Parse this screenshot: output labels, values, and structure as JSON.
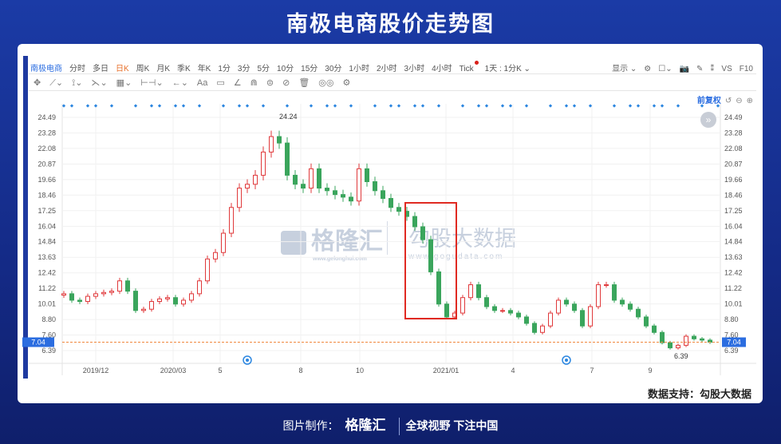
{
  "title": "南极电商股价走势图",
  "toolbar": {
    "stock": "南极电商",
    "periods": [
      "分时",
      "多日",
      "日K",
      "周K",
      "月K",
      "季K",
      "年K",
      "1分",
      "3分",
      "5分",
      "10分",
      "15分",
      "30分",
      "1小时",
      "2小时",
      "3小时",
      "4小时",
      "Tick"
    ],
    "active_period": "日K",
    "range": "1天 : 1分K ⌄",
    "drawing_tools": [
      "✥",
      "⟋⌄",
      "⟟⌄",
      "⋋⌄",
      "▦⌄",
      "⊢⊣⌄",
      "←⌄",
      "Aa",
      "▭",
      "∠",
      "⋒",
      "⊜",
      "⊘",
      "🗑",
      "◎◎",
      "⚙"
    ],
    "right": [
      "显示 ⌄",
      "⚙",
      "☐⌄",
      "📷",
      "✎",
      "⁑",
      "VS",
      "F10"
    ],
    "adjust": "前复权",
    "adjust_icons": [
      "↺",
      "⊖",
      "⊕"
    ]
  },
  "watermark": {
    "left": "格隆汇",
    "left_url": "www.gelonghui.com",
    "right": "勾股大数据",
    "right_url": "www.gogudata.com"
  },
  "chart_data": {
    "type": "candlestick",
    "closes": [
      10.8,
      10.3,
      10.2,
      10.6,
      10.8,
      10.9,
      11.0,
      11.8,
      11.0,
      9.5,
      9.6,
      10.2,
      10.4,
      10.5,
      10.0,
      10.3,
      10.8,
      11.8,
      13.5,
      14.0,
      15.5,
      17.5,
      19.0,
      19.3,
      20.0,
      21.8,
      23.0,
      22.5,
      20.0,
      19.3,
      19.0,
      20.5,
      19.0,
      18.8,
      18.5,
      18.3,
      18.0,
      20.5,
      19.5,
      18.8,
      18.2,
      17.5,
      17.2,
      16.8,
      16.0,
      15.0,
      12.5,
      10.0,
      9.0,
      9.3,
      10.5,
      11.5,
      10.5,
      9.8,
      9.5,
      9.5,
      9.3,
      9.0,
      8.5,
      7.8,
      8.3,
      9.3,
      10.3,
      10.0,
      9.5,
      8.3,
      9.8,
      11.5,
      11.5,
      10.3,
      10.0,
      9.6,
      9.0,
      8.3,
      7.8,
      7.0,
      6.6,
      6.8,
      7.5,
      7.3,
      7.2,
      7.04
    ],
    "y_ticks": [
      24.49,
      23.28,
      22.08,
      20.87,
      19.66,
      18.46,
      17.25,
      16.04,
      14.84,
      13.63,
      12.42,
      11.22,
      10.01,
      8.8,
      7.6,
      6.39
    ],
    "ylim": [
      6.39,
      24.49
    ],
    "x_ticks": [
      {
        "label": "2019/12",
        "at": 4
      },
      {
        "label": "2020/03",
        "at": 13.7
      },
      {
        "label": "5",
        "at": 19.6
      },
      {
        "label": "8",
        "at": 29.7
      },
      {
        "label": "10",
        "at": 37.1
      },
      {
        "label": "2021/01",
        "at": 47.9
      },
      {
        "label": "4",
        "at": 56.3
      },
      {
        "label": "7",
        "at": 66.2
      },
      {
        "label": "9",
        "at": 73.5
      }
    ],
    "high_label": {
      "text": "24.24",
      "at": 26.5,
      "value": 24.24
    },
    "low_label": {
      "text": "6.39",
      "at": 76.5,
      "value": 6.39
    },
    "current_price": "7.04",
    "highlight": {
      "from": 43,
      "to": 49,
      "color": "#e02a22"
    },
    "colors": {
      "up": "#e0393b",
      "down": "#3aa55c",
      "current": "#f0883e",
      "marker": "#2b86e0"
    },
    "event_markers_at": [
      23,
      63
    ],
    "grid": true
  },
  "credit": "数据支持：勾股大数据",
  "footer": {
    "label": "图片制作：",
    "logo": "格隆汇",
    "slogan": "全球视野 下注中国"
  }
}
